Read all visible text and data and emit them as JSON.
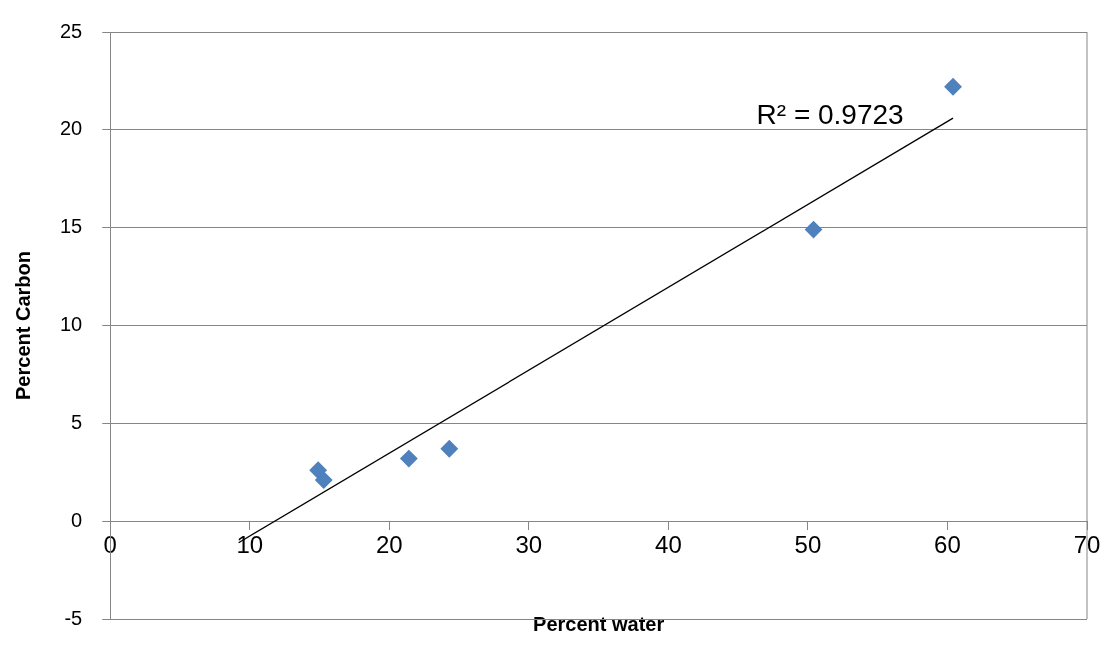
{
  "chart_data": {
    "type": "scatter",
    "xlabel": "Percent water",
    "ylabel": "Percent Carbon",
    "xlim": [
      0,
      70
    ],
    "xticks": [
      0,
      10,
      20,
      30,
      40,
      50,
      60,
      70
    ],
    "ylim": [
      -5,
      25
    ],
    "yticks": [
      -5,
      0,
      5,
      10,
      15,
      20,
      25
    ],
    "grid": "y",
    "legend": false,
    "marker": "diamond",
    "series": [
      {
        "type": "scatter",
        "color": "#4f81bd",
        "x": [
          14.9,
          15.3,
          21.4,
          24.3,
          50.4,
          60.4
        ],
        "values": [
          2.6,
          2.1,
          3.2,
          3.7,
          14.9,
          22.2
        ]
      },
      {
        "type": "line",
        "color": "#000000",
        "line_style": "solid",
        "marker": "none",
        "x": [
          9.2,
          60.4
        ],
        "values": [
          -1.1,
          20.6
        ]
      }
    ],
    "annotations": [
      "R² = 0.9723"
    ]
  }
}
